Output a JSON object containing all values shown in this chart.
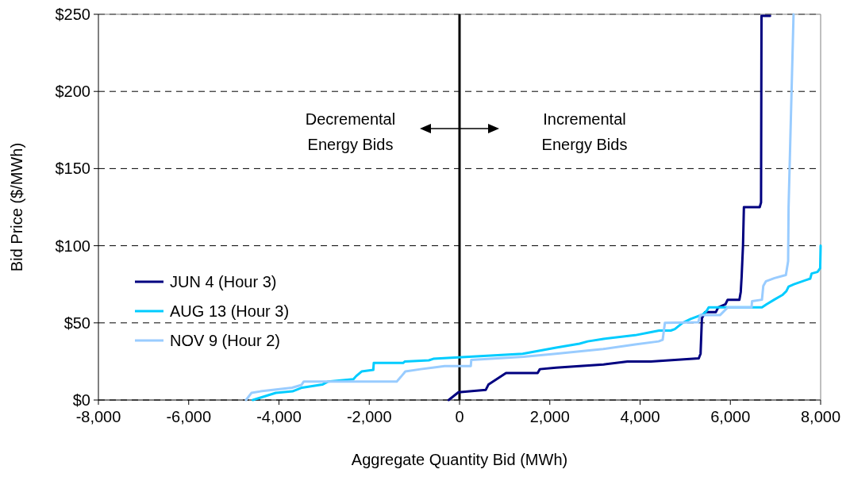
{
  "chart_data": {
    "type": "line",
    "xlabel": "Aggregate Quantity Bid (MWh)",
    "ylabel": "Bid Price ($/MWh)",
    "xlim": [
      -8000,
      8000
    ],
    "xticks": [
      {
        "value": -8000,
        "label": "-8,000"
      },
      {
        "value": -6000,
        "label": "-6,000"
      },
      {
        "value": -4000,
        "label": "-4,000"
      },
      {
        "value": -2000,
        "label": "-2,000"
      },
      0,
      {
        "value": 2000,
        "label": "2,000"
      },
      {
        "value": 4000,
        "label": "4,000"
      },
      {
        "value": 6000,
        "label": "6,000"
      },
      {
        "value": 8000,
        "label": "8,000"
      }
    ],
    "ylim": [
      0,
      250
    ],
    "yticks": [
      {
        "value": 0,
        "label": "$0"
      },
      {
        "value": 50,
        "label": "$50"
      },
      {
        "value": 100,
        "label": "$100"
      },
      {
        "value": 150,
        "label": "$150"
      },
      {
        "value": 200,
        "label": "$200"
      },
      {
        "value": 250,
        "label": "$250"
      }
    ],
    "grid": "y",
    "legend": "left",
    "line_style": "solid",
    "marker": "none",
    "ref_lines": [
      {
        "axis": "x",
        "value": 0,
        "color": "#000000"
      }
    ],
    "annotations": [
      "Decremental Energy Bids",
      "Incremental Energy Bids"
    ],
    "series": [
      {
        "name": "JUN 4 (Hour 3)",
        "color": "#000080",
        "x": [
          -240,
          -25,
          580,
          640,
          1030,
          1730,
          1780,
          2140,
          2660,
          3190,
          3720,
          4240,
          4770,
          5300,
          5340,
          5370,
          5440,
          5680,
          5730,
          5890,
          5940,
          6200,
          6230,
          6250,
          6280,
          6300,
          6650,
          6680,
          6690,
          6880
        ],
        "values": [
          0,
          5,
          6.5,
          10,
          17.5,
          17.5,
          20,
          21,
          22,
          23,
          25,
          25,
          26,
          27,
          30,
          53,
          57,
          57,
          60,
          62,
          65,
          65,
          70,
          80,
          100,
          125,
          125,
          128,
          249,
          249
        ]
      },
      {
        "name": "AUG 13 (Hour 3)",
        "color": "#00ccff",
        "x": [
          -4580,
          -4070,
          -3700,
          -3490,
          -3040,
          -2910,
          -2350,
          -2290,
          -2170,
          -1910,
          -1900,
          -1250,
          -1210,
          -680,
          -580,
          1400,
          2140,
          2660,
          2840,
          3190,
          3890,
          4240,
          4420,
          4680,
          4770,
          4940,
          5120,
          5390,
          5470,
          5520,
          6700,
          6800,
          6970,
          7150,
          7240,
          7290,
          7410,
          7770,
          7800,
          7930,
          7990,
          8000
        ],
        "values": [
          0,
          4.6,
          5.6,
          8,
          10,
          12,
          13.5,
          15.5,
          18.5,
          19.5,
          24,
          24,
          25,
          25.7,
          26.7,
          30,
          34,
          36.5,
          38,
          39.6,
          42,
          44,
          45,
          45,
          46,
          50,
          52.5,
          55.5,
          57.6,
          60,
          60,
          62,
          65,
          68,
          70.5,
          73.5,
          75,
          78.7,
          82,
          83,
          85.4,
          100
        ]
      },
      {
        "name": "NOV 9 (Hour 2)",
        "color": "#99ccff",
        "x": [
          -4730,
          -4610,
          -4410,
          -3710,
          -3500,
          -3450,
          -1390,
          -1300,
          -1200,
          -860,
          -600,
          -330,
          250,
          260,
          1420,
          2130,
          3180,
          3890,
          4410,
          4500,
          4550,
          5290,
          5330,
          5770,
          5940,
          6470,
          6480,
          6700,
          6730,
          6790,
          6980,
          7230,
          7280,
          7290,
          7400
        ],
        "values": [
          0,
          4.6,
          5.6,
          8,
          9.8,
          12,
          12,
          15,
          18.5,
          20,
          21,
          22,
          22,
          26,
          28,
          30,
          33,
          36,
          38,
          39,
          50,
          50.4,
          55,
          55,
          60,
          60,
          64,
          65,
          74,
          77,
          79,
          81,
          90,
          125,
          250
        ]
      }
    ]
  }
}
